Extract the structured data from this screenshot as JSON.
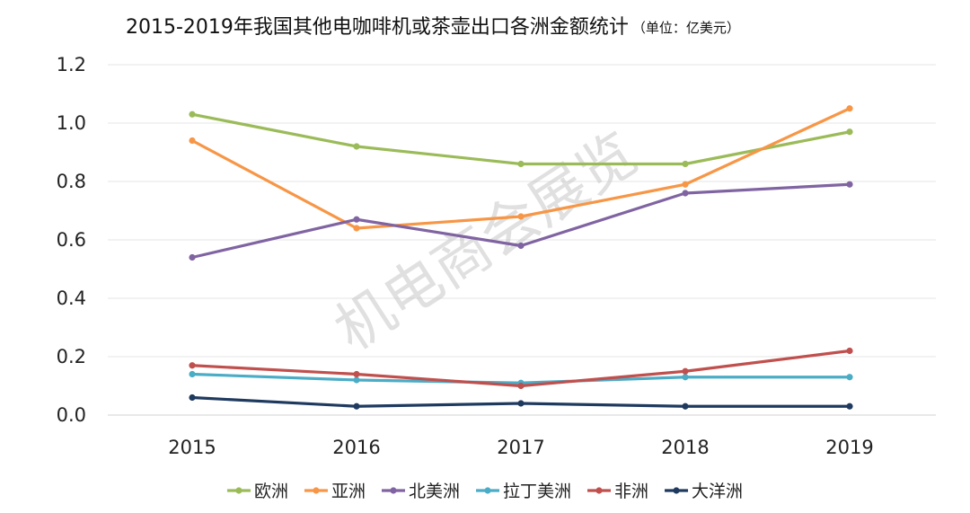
{
  "chart_data": {
    "type": "line",
    "title": "2015-2019年我国其他电咖啡机或茶壶出口各洲金额统计",
    "unit": "（单位：亿美元）",
    "xlabel": "",
    "ylabel": "",
    "categories": [
      "2015",
      "2016",
      "2017",
      "2018",
      "2019"
    ],
    "ylim": [
      0,
      1.2
    ],
    "yticks": [
      "0.0",
      "0.2",
      "0.4",
      "0.6",
      "0.8",
      "1.0",
      "1.2"
    ],
    "grid": true,
    "legend_position": "bottom",
    "series": [
      {
        "name": "欧洲",
        "color": "#9bbb59",
        "values": [
          1.03,
          0.92,
          0.86,
          0.86,
          0.97
        ]
      },
      {
        "name": "亚洲",
        "color": "#f79646",
        "values": [
          0.94,
          0.64,
          0.68,
          0.79,
          1.05
        ]
      },
      {
        "name": "北美洲",
        "color": "#8064a2",
        "values": [
          0.54,
          0.67,
          0.58,
          0.76,
          0.79
        ]
      },
      {
        "name": "拉丁美洲",
        "color": "#4bacc6",
        "values": [
          0.14,
          0.12,
          0.11,
          0.13,
          0.13
        ]
      },
      {
        "name": "非洲",
        "color": "#c0504d",
        "values": [
          0.17,
          0.14,
          0.1,
          0.15,
          0.22
        ]
      },
      {
        "name": "大洋洲",
        "color": "#1f3a5f",
        "values": [
          0.06,
          0.03,
          0.04,
          0.03,
          0.03
        ]
      }
    ],
    "watermark": "机电商会展览"
  }
}
